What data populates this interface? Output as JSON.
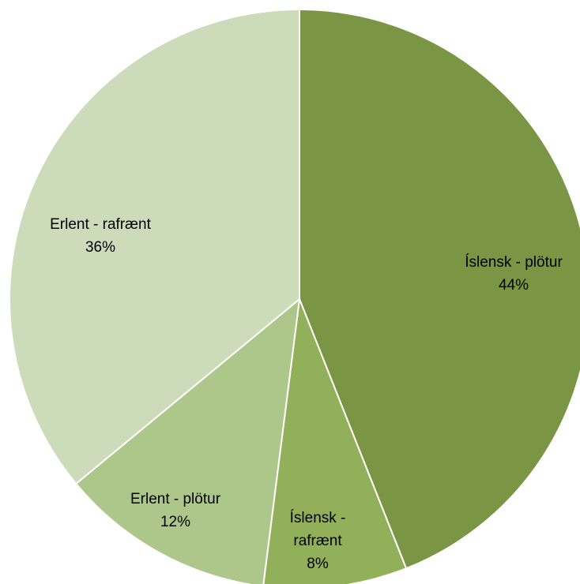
{
  "chart_data": {
    "type": "pie",
    "title": "",
    "series": [
      {
        "labels": [
          "Íslensk - plötur",
          "Íslensk - rafrænt",
          "Erlent - plötur",
          "Erlent - rafrænt"
        ],
        "values": [
          44,
          8,
          12,
          36
        ],
        "value_labels": [
          "44%",
          "8%",
          "12%",
          "36%"
        ],
        "colors": [
          "#7a9644",
          "#92b05a",
          "#adc78a",
          "#ccdbb9"
        ]
      }
    ],
    "start_angle": "12 o'clock",
    "direction": "clockwise",
    "legend": "none"
  }
}
